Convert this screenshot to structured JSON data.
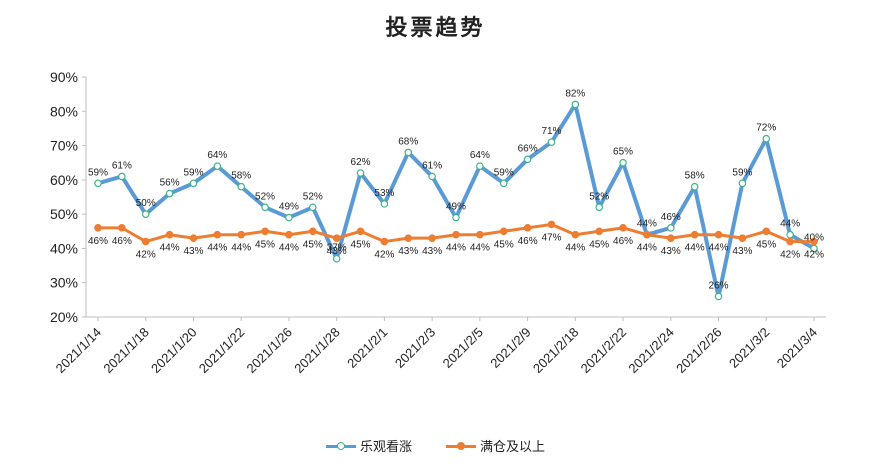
{
  "title": "投票趋势",
  "colors": {
    "series1": "#5B9BD5",
    "series1_marker_fill": "#ffffff",
    "series1_marker_stroke": "#3EB489",
    "series2": "#ED7D31",
    "gridline": "#d9d9d9"
  },
  "legend": {
    "series1_label": "乐观看涨",
    "series2_label": "满仓及以上"
  },
  "chart_data": {
    "type": "line",
    "title": "投票趋势",
    "xlabel": "",
    "ylabel": "",
    "ylim": [
      20,
      90
    ],
    "yticks": [
      "20%",
      "30%",
      "40%",
      "50%",
      "60%",
      "70%",
      "80%",
      "90%"
    ],
    "ytick_values": [
      20,
      30,
      40,
      50,
      60,
      70,
      80,
      90
    ],
    "x_tick_labels": [
      "2021/1/14",
      "2021/1/18",
      "2021/1/20",
      "2021/1/22",
      "2021/1/26",
      "2021/1/28",
      "2021/2/1",
      "2021/2/3",
      "2021/2/5",
      "2021/2/9",
      "2021/2/18",
      "2021/2/22",
      "2021/2/24",
      "2021/2/26",
      "2021/3/2",
      "2021/3/4"
    ],
    "x_tick_indices": [
      0,
      2,
      4,
      6,
      8,
      10,
      12,
      14,
      16,
      18,
      20,
      22,
      24,
      26,
      28,
      30
    ],
    "grid": false,
    "legend_position": "bottom",
    "series": [
      {
        "name": "乐观看涨",
        "values": [
          59,
          61,
          50,
          56,
          59,
          64,
          58,
          52,
          49,
          52,
          37,
          62,
          53,
          68,
          61,
          49,
          64,
          59,
          66,
          71,
          82,
          52,
          65,
          44,
          46,
          58,
          26,
          59,
          72,
          44,
          40
        ],
        "labels": [
          "59%",
          "61%",
          "50%",
          "56%",
          "59%",
          "64%",
          "58%",
          "52%",
          "49%",
          "52%",
          "37%",
          "62%",
          "53%",
          "68%",
          "61%",
          "49%",
          "64%",
          "59%",
          "66%",
          "71%",
          "82%",
          "52%",
          "65%",
          "44%",
          "46%",
          "58%",
          "26%",
          "59%",
          "72%",
          "44%",
          "40%"
        ]
      },
      {
        "name": "满仓及以上",
        "values": [
          46,
          46,
          42,
          44,
          43,
          44,
          44,
          45,
          44,
          45,
          43,
          45,
          42,
          43,
          43,
          44,
          44,
          45,
          46,
          47,
          44,
          45,
          46,
          44,
          43,
          44,
          44,
          43,
          45,
          42,
          42
        ],
        "labels": [
          "46%",
          "46%",
          "42%",
          "44%",
          "43%",
          "44%",
          "44%",
          "45%",
          "44%",
          "45%",
          "43%",
          "45%",
          "42%",
          "43%",
          "43%",
          "44%",
          "44%",
          "45%",
          "46%",
          "47%",
          "44%",
          "45%",
          "46%",
          "44%",
          "43%",
          "44%",
          "44%",
          "43%",
          "45%",
          "42%",
          "42%"
        ]
      }
    ]
  }
}
